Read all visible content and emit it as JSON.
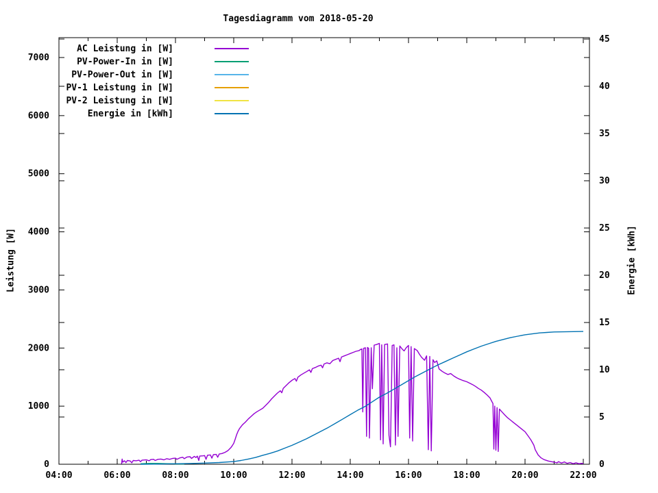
{
  "title": "Tagesdiagramm vom 2018-05-20",
  "chart_data": {
    "type": "line",
    "title": "Tagesdiagramm vom 2018-05-20",
    "ylabel": "Leistung [W]",
    "y2label": "Energie [kWh]",
    "grid": false,
    "legend_position": "inside top-left",
    "x_axis": {
      "unit": "time",
      "major_tick_labels": [
        "04:00",
        "06:00",
        "08:00",
        "10:00",
        "12:00",
        "14:00",
        "16:00",
        "18:00",
        "20:00",
        "22:00"
      ],
      "major_tick_hours": [
        4,
        6,
        8,
        10,
        12,
        14,
        16,
        18,
        20,
        22
      ],
      "minor_tick_hours": [
        5,
        7,
        9,
        11,
        13,
        15,
        17,
        19,
        21
      ],
      "range_hours": [
        4,
        22.27
      ]
    },
    "y_axis": {
      "label": "Leistung [W]",
      "tick_values": [
        0,
        1000,
        2000,
        3000,
        4000,
        5000,
        6000,
        7000
      ],
      "range": [
        0,
        7320
      ]
    },
    "y2_axis": {
      "label": "Energie [kWh]",
      "tick_values": [
        0,
        5,
        10,
        15,
        20,
        25,
        30,
        35,
        40,
        45
      ],
      "range": [
        0,
        45
      ]
    },
    "series": [
      {
        "name": "AC Leistung in [W]",
        "color": "#9400d3",
        "axis": "y",
        "points": [
          [
            6.15,
            5
          ],
          [
            6.17,
            90
          ],
          [
            6.19,
            35
          ],
          [
            6.25,
            60
          ],
          [
            6.3,
            30
          ],
          [
            6.35,
            65
          ],
          [
            6.45,
            55
          ],
          [
            6.5,
            25
          ],
          [
            6.55,
            65
          ],
          [
            6.65,
            60
          ],
          [
            6.75,
            70
          ],
          [
            6.8,
            45
          ],
          [
            6.85,
            70
          ],
          [
            7.0,
            75
          ],
          [
            7.1,
            60
          ],
          [
            7.15,
            80
          ],
          [
            7.25,
            85
          ],
          [
            7.3,
            65
          ],
          [
            7.4,
            85
          ],
          [
            7.5,
            90
          ],
          [
            7.6,
            75
          ],
          [
            7.7,
            95
          ],
          [
            7.8,
            85
          ],
          [
            7.9,
            100
          ],
          [
            8.0,
            105
          ],
          [
            8.05,
            85
          ],
          [
            8.15,
            110
          ],
          [
            8.25,
            120
          ],
          [
            8.3,
            95
          ],
          [
            8.4,
            125
          ],
          [
            8.5,
            130
          ],
          [
            8.55,
            100
          ],
          [
            8.65,
            135
          ],
          [
            8.7,
            115
          ],
          [
            8.75,
            140
          ],
          [
            8.8,
            65
          ],
          [
            8.83,
            140
          ],
          [
            8.95,
            145
          ],
          [
            9.0,
            150
          ],
          [
            9.05,
            85
          ],
          [
            9.1,
            155
          ],
          [
            9.2,
            160
          ],
          [
            9.25,
            105
          ],
          [
            9.3,
            165
          ],
          [
            9.4,
            170
          ],
          [
            9.45,
            120
          ],
          [
            9.5,
            175
          ],
          [
            9.6,
            185
          ],
          [
            9.7,
            205
          ],
          [
            9.8,
            235
          ],
          [
            9.9,
            285
          ],
          [
            9.95,
            320
          ],
          [
            10.0,
            360
          ],
          [
            10.05,
            430
          ],
          [
            10.1,
            510
          ],
          [
            10.15,
            570
          ],
          [
            10.2,
            615
          ],
          [
            10.3,
            680
          ],
          [
            10.4,
            725
          ],
          [
            10.5,
            780
          ],
          [
            10.6,
            825
          ],
          [
            10.7,
            870
          ],
          [
            10.8,
            905
          ],
          [
            10.9,
            935
          ],
          [
            11.0,
            965
          ],
          [
            11.1,
            1015
          ],
          [
            11.2,
            1065
          ],
          [
            11.3,
            1125
          ],
          [
            11.4,
            1175
          ],
          [
            11.5,
            1225
          ],
          [
            11.6,
            1265
          ],
          [
            11.65,
            1230
          ],
          [
            11.7,
            1305
          ],
          [
            11.8,
            1355
          ],
          [
            11.9,
            1405
          ],
          [
            12.0,
            1445
          ],
          [
            12.1,
            1475
          ],
          [
            12.15,
            1430
          ],
          [
            12.2,
            1495
          ],
          [
            12.3,
            1535
          ],
          [
            12.4,
            1565
          ],
          [
            12.5,
            1595
          ],
          [
            12.6,
            1625
          ],
          [
            12.65,
            1580
          ],
          [
            12.7,
            1645
          ],
          [
            12.8,
            1665
          ],
          [
            12.9,
            1690
          ],
          [
            13.0,
            1705
          ],
          [
            13.05,
            1660
          ],
          [
            13.1,
            1725
          ],
          [
            13.2,
            1745
          ],
          [
            13.3,
            1730
          ],
          [
            13.4,
            1785
          ],
          [
            13.5,
            1805
          ],
          [
            13.6,
            1825
          ],
          [
            13.65,
            1765
          ],
          [
            13.7,
            1845
          ],
          [
            13.8,
            1865
          ],
          [
            13.9,
            1885
          ],
          [
            14.0,
            1905
          ],
          [
            14.1,
            1925
          ],
          [
            14.2,
            1945
          ],
          [
            14.3,
            1955
          ],
          [
            14.35,
            1975
          ],
          [
            14.4,
            1985
          ],
          [
            14.43,
            900
          ],
          [
            14.46,
            1995
          ],
          [
            14.52,
            2005
          ],
          [
            14.56,
            480
          ],
          [
            14.59,
            2010
          ],
          [
            14.63,
            1995
          ],
          [
            14.66,
            450
          ],
          [
            14.72,
            2005
          ],
          [
            14.76,
            1300
          ],
          [
            14.82,
            2050
          ],
          [
            14.9,
            2060
          ],
          [
            15.0,
            2080
          ],
          [
            15.04,
            420
          ],
          [
            15.08,
            2055
          ],
          [
            15.13,
            350
          ],
          [
            15.18,
            2060
          ],
          [
            15.28,
            2070
          ],
          [
            15.33,
            500
          ],
          [
            15.38,
            300
          ],
          [
            15.44,
            2045
          ],
          [
            15.5,
            2055
          ],
          [
            15.55,
            330
          ],
          [
            15.6,
            2005
          ],
          [
            15.64,
            480
          ],
          [
            15.7,
            2035
          ],
          [
            15.78,
            1985
          ],
          [
            15.85,
            1950
          ],
          [
            15.92,
            2005
          ],
          [
            16.0,
            2045
          ],
          [
            16.04,
            450
          ],
          [
            16.09,
            2025
          ],
          [
            16.14,
            400
          ],
          [
            16.2,
            1990
          ],
          [
            16.3,
            1955
          ],
          [
            16.38,
            1890
          ],
          [
            16.45,
            1840
          ],
          [
            16.55,
            1790
          ],
          [
            16.62,
            1865
          ],
          [
            16.68,
            250
          ],
          [
            16.73,
            1855
          ],
          [
            16.78,
            230
          ],
          [
            16.84,
            1800
          ],
          [
            16.9,
            1750
          ],
          [
            16.97,
            1780
          ],
          [
            17.05,
            1640
          ],
          [
            17.15,
            1600
          ],
          [
            17.25,
            1570
          ],
          [
            17.35,
            1545
          ],
          [
            17.45,
            1560
          ],
          [
            17.55,
            1520
          ],
          [
            17.65,
            1490
          ],
          [
            17.75,
            1465
          ],
          [
            17.85,
            1445
          ],
          [
            18.0,
            1420
          ],
          [
            18.1,
            1395
          ],
          [
            18.2,
            1370
          ],
          [
            18.3,
            1340
          ],
          [
            18.4,
            1305
          ],
          [
            18.5,
            1275
          ],
          [
            18.6,
            1235
          ],
          [
            18.7,
            1190
          ],
          [
            18.8,
            1140
          ],
          [
            18.85,
            1090
          ],
          [
            18.9,
            1045
          ],
          [
            18.93,
            260
          ],
          [
            18.96,
            1000
          ],
          [
            19.0,
            240
          ],
          [
            19.04,
            975
          ],
          [
            19.08,
            220
          ],
          [
            19.12,
            950
          ],
          [
            19.2,
            905
          ],
          [
            19.3,
            850
          ],
          [
            19.4,
            800
          ],
          [
            19.5,
            760
          ],
          [
            19.6,
            720
          ],
          [
            19.7,
            680
          ],
          [
            19.8,
            640
          ],
          [
            19.9,
            600
          ],
          [
            20.0,
            560
          ],
          [
            20.1,
            490
          ],
          [
            20.2,
            420
          ],
          [
            20.3,
            330
          ],
          [
            20.35,
            250
          ],
          [
            20.45,
            160
          ],
          [
            20.55,
            110
          ],
          [
            20.65,
            80
          ],
          [
            20.8,
            55
          ],
          [
            20.9,
            45
          ],
          [
            21.0,
            35
          ],
          [
            21.1,
            25
          ],
          [
            21.15,
            45
          ],
          [
            21.25,
            20
          ],
          [
            21.35,
            40
          ],
          [
            21.45,
            15
          ],
          [
            21.55,
            30
          ],
          [
            21.65,
            10
          ],
          [
            21.75,
            25
          ],
          [
            21.85,
            10
          ],
          [
            21.95,
            15
          ],
          [
            22.0,
            8
          ]
        ]
      },
      {
        "name": "PV-Power-In in [W]",
        "color": "#009e73",
        "axis": "y",
        "points": [
          [
            6.8,
            8
          ],
          [
            7.1,
            14
          ],
          [
            7.4,
            14
          ],
          [
            7.7,
            10
          ],
          [
            8.0,
            6
          ],
          [
            8.3,
            4
          ]
        ]
      },
      {
        "name": "PV-Power-Out in [W]",
        "color": "#56b4e9",
        "axis": "y",
        "points": []
      },
      {
        "name": "PV-1 Leistung in [W]",
        "color": "#e69f00",
        "axis": "y",
        "points": []
      },
      {
        "name": "PV-2 Leistung in [W]",
        "color": "#f0e442",
        "axis": "y",
        "points": []
      },
      {
        "name": "Energie in [kWh]",
        "color": "#0072b2",
        "axis": "y2",
        "points": [
          [
            6.8,
            0
          ],
          [
            7.5,
            0.02
          ],
          [
            8.0,
            0.05
          ],
          [
            8.5,
            0.08
          ],
          [
            9.0,
            0.12
          ],
          [
            9.5,
            0.18
          ],
          [
            10.0,
            0.28
          ],
          [
            10.25,
            0.4
          ],
          [
            10.5,
            0.55
          ],
          [
            10.75,
            0.72
          ],
          [
            11.0,
            0.95
          ],
          [
            11.25,
            1.15
          ],
          [
            11.5,
            1.4
          ],
          [
            11.75,
            1.7
          ],
          [
            12.0,
            2.0
          ],
          [
            12.25,
            2.35
          ],
          [
            12.5,
            2.7
          ],
          [
            12.75,
            3.1
          ],
          [
            13.0,
            3.5
          ],
          [
            13.25,
            3.9
          ],
          [
            13.5,
            4.35
          ],
          [
            13.75,
            4.8
          ],
          [
            14.0,
            5.25
          ],
          [
            14.25,
            5.7
          ],
          [
            14.5,
            6.1
          ],
          [
            14.75,
            6.6
          ],
          [
            15.0,
            7.1
          ],
          [
            15.25,
            7.5
          ],
          [
            15.5,
            7.95
          ],
          [
            15.75,
            8.4
          ],
          [
            16.0,
            8.85
          ],
          [
            16.25,
            9.3
          ],
          [
            16.5,
            9.7
          ],
          [
            16.75,
            10.1
          ],
          [
            17.0,
            10.5
          ],
          [
            17.25,
            10.85
          ],
          [
            17.5,
            11.2
          ],
          [
            17.75,
            11.55
          ],
          [
            18.0,
            11.9
          ],
          [
            18.25,
            12.2
          ],
          [
            18.5,
            12.5
          ],
          [
            18.75,
            12.75
          ],
          [
            19.0,
            13.0
          ],
          [
            19.25,
            13.2
          ],
          [
            19.5,
            13.4
          ],
          [
            19.75,
            13.55
          ],
          [
            20.0,
            13.7
          ],
          [
            20.25,
            13.8
          ],
          [
            20.5,
            13.9
          ],
          [
            20.75,
            13.95
          ],
          [
            21.0,
            14.0
          ],
          [
            21.5,
            14.03
          ],
          [
            22.0,
            14.05
          ]
        ]
      }
    ]
  },
  "colors": {
    "background": "#ffffff",
    "frame": "#000000",
    "text": "#000000"
  }
}
